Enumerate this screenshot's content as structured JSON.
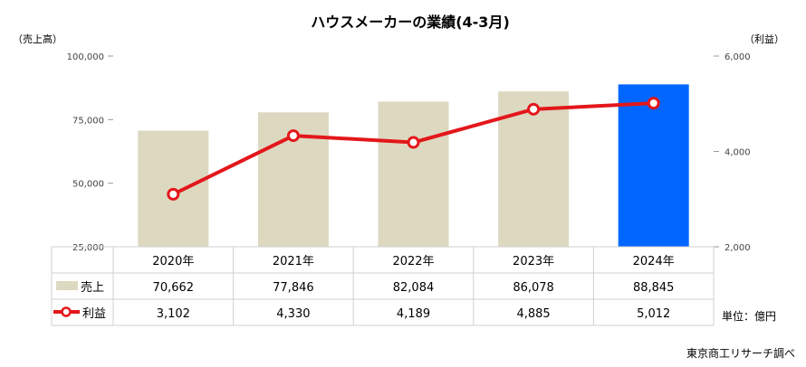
{
  "chart_data": {
    "type": "bar",
    "title": "ハウスメーカーの業績(4-3月)",
    "categories": [
      "2020年",
      "2021年",
      "2022年",
      "2023年",
      "2024年"
    ],
    "series": [
      {
        "name": "売上",
        "type": "bar",
        "axis": "left",
        "values": [
          70662,
          77846,
          82084,
          86078,
          88845
        ],
        "labels": [
          "70,662",
          "77,846",
          "82,084",
          "86,078",
          "88,845"
        ],
        "color": "#DDD8C0",
        "highlight_color": "#0066FF",
        "highlight_index": 4
      },
      {
        "name": "利益",
        "type": "line",
        "axis": "right",
        "values": [
          3102,
          4330,
          4189,
          4885,
          5012
        ],
        "labels": [
          "3,102",
          "4,330",
          "4,189",
          "4,885",
          "5,012"
        ],
        "color": "#E3171B"
      }
    ],
    "y_left": {
      "label": "（売上高）",
      "range": [
        25000,
        100000
      ],
      "ticks": [
        25000,
        50000,
        75000,
        100000
      ],
      "tick_labels": [
        "25,000",
        "50,000",
        "75,000",
        "100,000"
      ]
    },
    "y_right": {
      "label": "（利益）",
      "range": [
        2000,
        6000
      ],
      "ticks": [
        2000,
        4000,
        6000
      ],
      "tick_labels": [
        "2,000",
        "4,000",
        "6,000"
      ]
    },
    "grid": false,
    "legend": "table-rows"
  },
  "unit_note": "単位：億円",
  "source_note": "東京商工リサーチ調べ"
}
